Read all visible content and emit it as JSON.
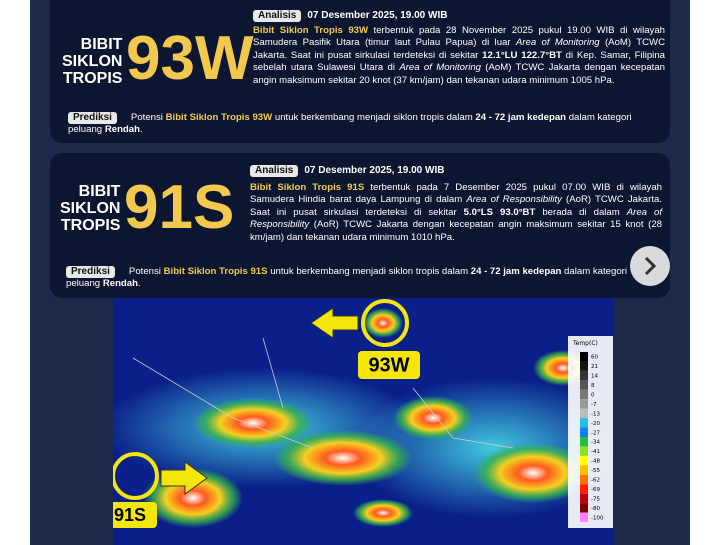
{
  "cards": [
    {
      "label": [
        "BIBIT",
        "SIKLON",
        "TROPIS"
      ],
      "code": "93W",
      "analysis_badge": "Analisis",
      "date": "07 Desember 2025, 19.00 WIB",
      "analysis": [
        "Bibit Siklon Tropis 93W",
        " terbentuk pada 28 November 2025 pukul 19.00 WIB di wilayah Samudera Pasifik Utara (timur laut Pulau Papua) di luar ",
        "Area of Monitoring",
        " (AoM) TCWC Jakarta. Saat ini pusat sirkulasi terdeteksi di sekitar ",
        "12.1°LU 122.7°BT",
        " di Kep. Samar, Filipina sebelah utara Sulawesi Utara di ",
        "Area of Monitoring",
        " (AoM) TCWC Jakarta dengan kecepatan angin maksimum sekitar 20 knot (37 km/jam) dan tekanan udara minimum 1005 hPa."
      ],
      "prediction_badge": "Prediksi",
      "prediction": [
        "Potensi ",
        "Bibit Siklon Tropis 93W",
        " untuk berkembang menjadi siklon tropis dalam ",
        "24 - 72 jam kedepan",
        " dalam kategori peluang ",
        "Rendah",
        "."
      ]
    },
    {
      "label": [
        "BIBIT",
        "SIKLON",
        "TROPIS"
      ],
      "code": "91S",
      "analysis_badge": "Analisis",
      "date": "07 Desember 2025, 19.00 WIB",
      "analysis": [
        "Bibit Siklon Tropis 91S",
        " terbentuk pada 7 Desember 2025 pukul 07.00 WIB di wilayah Samudera Hindia barat daya Lampung di dalam ",
        "Area of Responsibility",
        " (AoR) TCWC Jakarta. Saat ini pusat sirkulasi terdeteksi di sekitar ",
        "5.0°LS 93.0°BT",
        " berada di dalam ",
        "Area of Responsibility",
        " (AoR) TCWC Jakarta dengan kecepatan angin maksimum sekitar 15 knot (28 km/jam) dan tekanan udara minimum 1010 hPa."
      ],
      "prediction_badge": "Prediksi",
      "prediction": [
        "Potensi ",
        "Bibit Siklon Tropis 91S",
        " untuk berkembang menjadi siklon tropis dalam ",
        "24 - 72 jam kedepan",
        " dalam kategori peluang ",
        "Rendah",
        "."
      ]
    }
  ],
  "map": {
    "callouts": [
      "93W",
      "91S"
    ],
    "colorbar_title": "Temp(C)",
    "colorbar_labels": [
      "60",
      "21",
      "14",
      "8",
      "0",
      "-7",
      "-13",
      "-20",
      "-27",
      "-34",
      "-41",
      "-48",
      "-55",
      "-62",
      "-69",
      "-75",
      "-80",
      "-100"
    ]
  }
}
